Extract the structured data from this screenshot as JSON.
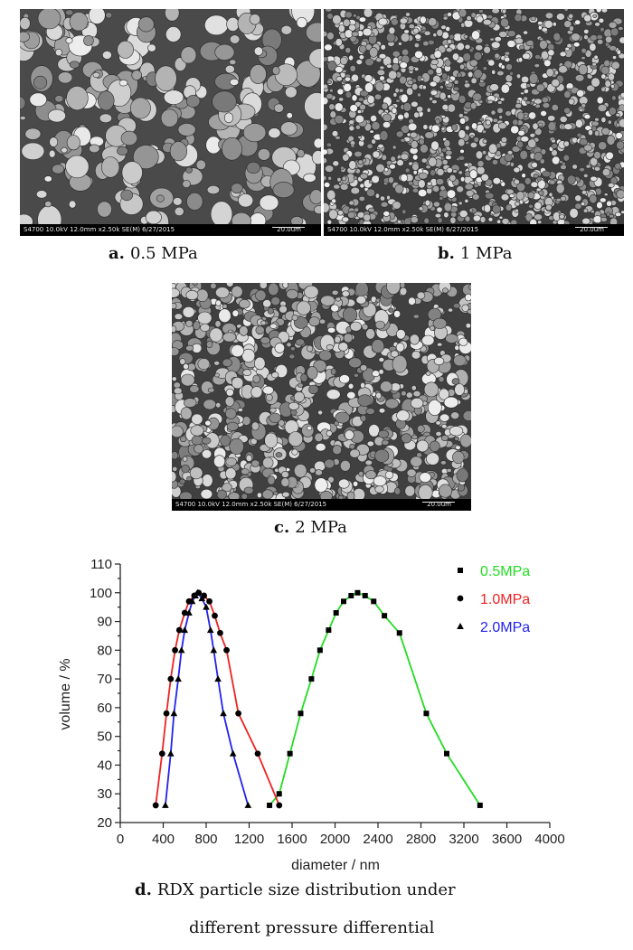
{
  "panels": [
    {
      "id": "a",
      "label": "a.",
      "caption": "0.5 MPa",
      "databar": "S4700 10.0kV 12.0mm x2.50k SE(M) 6/27/2015",
      "scale": "20.0um"
    },
    {
      "id": "b",
      "label": "b.",
      "caption": "1 MPa",
      "databar": "S4700 10.0kV 12.0mm x2.50k SE(M) 6/27/2015",
      "scale": "20.0um"
    },
    {
      "id": "c",
      "label": "c.",
      "caption": "2 MPa",
      "databar": "S4700 10.0kV 12.0mm x2.50k SE(M) 6/27/2015",
      "scale": "20.0um"
    }
  ],
  "figure_caption": {
    "label": "d.",
    "line1": "RDX particle size distribution under",
    "line2": "different pressure differential"
  },
  "chart_data": {
    "type": "line",
    "xlabel": "diameter / nm",
    "ylabel": "volume / %",
    "xlim": [
      0,
      4000
    ],
    "ylim": [
      20,
      110
    ],
    "xticks": [
      0,
      400,
      800,
      1200,
      1600,
      2000,
      2400,
      2800,
      3200,
      3600,
      4000
    ],
    "yticks": [
      20,
      25,
      30,
      35,
      40,
      45,
      50,
      55,
      60,
      65,
      70,
      75,
      80,
      85,
      90,
      95,
      100,
      105,
      110
    ],
    "ytick_labels": [
      20,
      30,
      40,
      50,
      60,
      70,
      80,
      90,
      100,
      110
    ],
    "grid": false,
    "legend_position": "top-right",
    "series": [
      {
        "name": "0.5MPa",
        "color": "#22dd22",
        "marker": "square",
        "x": [
          1390,
          1480,
          1580,
          1680,
          1780,
          1860,
          1940,
          2010,
          2080,
          2150,
          2210,
          2280,
          2360,
          2460,
          2600,
          2850,
          3040,
          3350
        ],
        "y": [
          26,
          30,
          44,
          58,
          70,
          80,
          87,
          93,
          97,
          99,
          100,
          99,
          97,
          92,
          86,
          58,
          44,
          26
        ]
      },
      {
        "name": "1.0MPa",
        "color": "#ee2222",
        "marker": "circle",
        "x": [
          330,
          390,
          430,
          470,
          510,
          550,
          600,
          640,
          690,
          730,
          780,
          830,
          880,
          930,
          990,
          1100,
          1280,
          1480
        ],
        "y": [
          26,
          44,
          58,
          70,
          80,
          87,
          93,
          97,
          99,
          100,
          99,
          97,
          92,
          86,
          80,
          58,
          44,
          26
        ]
      },
      {
        "name": "2.0MPa",
        "color": "#2222ee",
        "marker": "triangle",
        "x": [
          420,
          470,
          500,
          540,
          570,
          600,
          640,
          670,
          700,
          720,
          760,
          800,
          840,
          870,
          910,
          960,
          1050,
          1190
        ],
        "y": [
          26,
          44,
          58,
          70,
          80,
          87,
          93,
          97,
          99,
          100,
          98,
          95,
          87,
          80,
          70,
          58,
          44,
          26
        ]
      }
    ]
  }
}
